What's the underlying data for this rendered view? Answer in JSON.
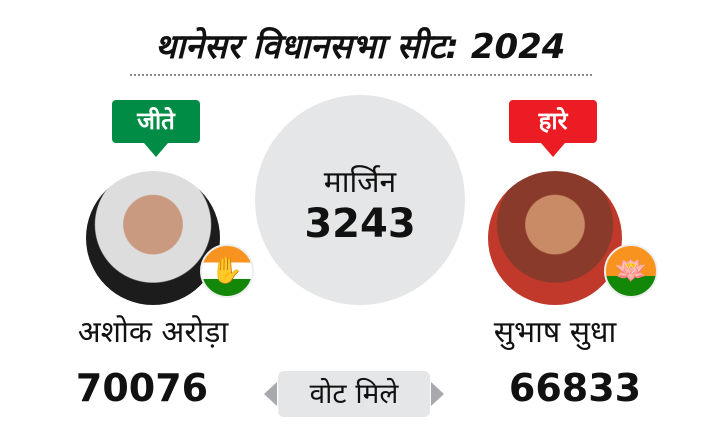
{
  "title": "थानेसर विधानसभा सीट: 2024",
  "margin": {
    "label": "मार्जिन",
    "value": "3243"
  },
  "votes_label": "वोट मिले",
  "winner": {
    "status": "जीते",
    "name": "अशोक अरोड़ा",
    "votes": "70076",
    "party_icon": "congress-hand-icon",
    "status_color": "#008c45"
  },
  "loser": {
    "status": "हारे",
    "name": "सुभाष सुधा",
    "votes": "66833",
    "party_icon": "bjp-lotus-icon",
    "status_color": "#ec1c24"
  }
}
